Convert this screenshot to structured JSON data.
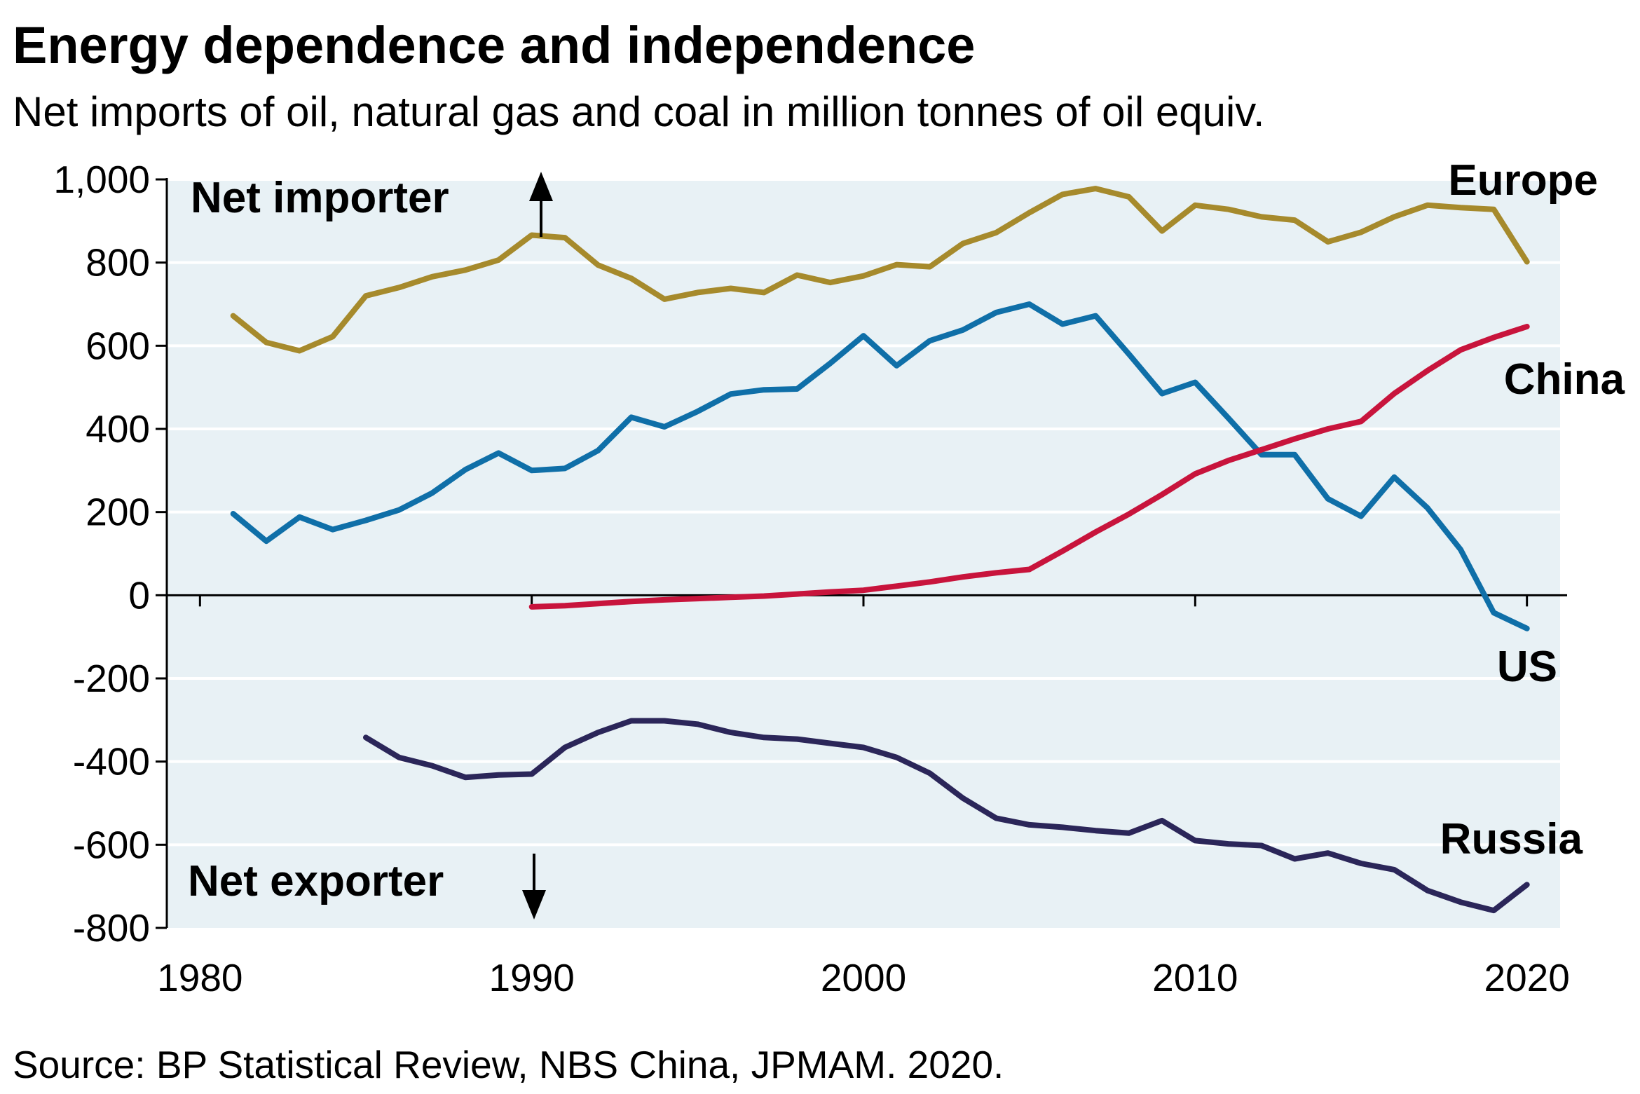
{
  "chart_data": {
    "type": "line",
    "title": "Energy dependence and independence",
    "subtitle": "Net imports of oil, natural gas and coal in million tonnes of oil equiv.",
    "source": "Source: BP Statistical Review, NBS China, JPMAM. 2020.",
    "xlabel": "",
    "ylabel": "",
    "xlim": [
      1979.0,
      2021.0
    ],
    "ylim": [
      -800,
      1000
    ],
    "x_ticks": [
      1980,
      1990,
      2000,
      2010,
      2020
    ],
    "x_tick_labels": [
      "1980",
      "1990",
      "2000",
      "2010",
      "2020"
    ],
    "y_ticks": [
      1000,
      800,
      600,
      400,
      200,
      0,
      -200,
      -400,
      -600,
      -800
    ],
    "y_tick_labels": [
      "1,000",
      "800",
      "600",
      "400",
      "200",
      "0",
      "-200",
      "-400",
      "-600",
      "-800"
    ],
    "grid": true,
    "legend": "direct labels at line ends",
    "annotations": {
      "net_importer": "Net importer",
      "net_exporter": "Net exporter"
    },
    "series": [
      {
        "name": "Europe",
        "color": "#A68A2C",
        "x": [
          1981,
          1982,
          1983,
          1984,
          1985,
          1986,
          1987,
          1988,
          1989,
          1990,
          1991,
          1992,
          1993,
          1994,
          1995,
          1996,
          1997,
          1998,
          1999,
          2000,
          2001,
          2002,
          2003,
          2004,
          2005,
          2006,
          2007,
          2008,
          2009,
          2010,
          2011,
          2012,
          2013,
          2014,
          2015,
          2016,
          2017,
          2018,
          2019,
          2020
        ],
        "values": [
          672,
          608,
          588,
          622,
          720,
          740,
          766,
          782,
          806,
          866,
          860,
          794,
          762,
          712,
          728,
          738,
          728,
          770,
          752,
          768,
          795,
          790,
          846,
          872,
          920,
          964,
          978,
          958,
          876,
          938,
          928,
          910,
          902,
          850,
          873,
          910,
          938,
          932,
          928,
          802
        ]
      },
      {
        "name": "US",
        "color": "#0F6FA8",
        "x": [
          1981,
          1982,
          1983,
          1984,
          1985,
          1986,
          1987,
          1988,
          1989,
          1990,
          1991,
          1992,
          1993,
          1994,
          1995,
          1996,
          1997,
          1998,
          1999,
          2000,
          2001,
          2002,
          2003,
          2004,
          2005,
          2006,
          2007,
          2008,
          2009,
          2010,
          2011,
          2012,
          2013,
          2014,
          2015,
          2016,
          2017,
          2018,
          2019,
          2020
        ],
        "values": [
          196,
          130,
          188,
          158,
          180,
          205,
          246,
          302,
          342,
          300,
          305,
          348,
          428,
          405,
          442,
          484,
          494,
          496,
          558,
          624,
          552,
          612,
          638,
          680,
          700,
          652,
          672,
          580,
          485,
          512,
          426,
          338,
          338,
          232,
          190,
          284,
          210,
          110,
          -42,
          -80
        ]
      },
      {
        "name": "China",
        "color": "#C8143C",
        "x": [
          1990,
          1991,
          1992,
          1993,
          1994,
          1995,
          1996,
          1997,
          1998,
          1999,
          2000,
          2001,
          2002,
          2003,
          2004,
          2005,
          2006,
          2007,
          2008,
          2009,
          2010,
          2011,
          2012,
          2013,
          2014,
          2015,
          2016,
          2017,
          2018,
          2019,
          2020
        ],
        "values": [
          -28,
          -25,
          -20,
          -15,
          -11,
          -8,
          -5,
          -2,
          3,
          8,
          12,
          22,
          32,
          44,
          54,
          62,
          106,
          152,
          195,
          242,
          292,
          324,
          350,
          376,
          400,
          418,
          485,
          540,
          590,
          620,
          646
        ]
      },
      {
        "name": "Russia",
        "color": "#2B2659",
        "x": [
          1985,
          1986,
          1987,
          1988,
          1989,
          1990,
          1991,
          1992,
          1993,
          1994,
          1995,
          1996,
          1997,
          1998,
          1999,
          2000,
          2001,
          2002,
          2003,
          2004,
          2005,
          2006,
          2007,
          2008,
          2009,
          2010,
          2011,
          2012,
          2013,
          2014,
          2015,
          2016,
          2017,
          2018,
          2019,
          2020
        ],
        "values": [
          -342,
          -390,
          -410,
          -438,
          -432,
          -430,
          -366,
          -330,
          -302,
          -302,
          -310,
          -330,
          -342,
          -346,
          -356,
          -366,
          -390,
          -428,
          -488,
          -536,
          -552,
          -558,
          -566,
          -572,
          -542,
          -590,
          -598,
          -602,
          -634,
          -620,
          -645,
          -660,
          -710,
          -738,
          -758,
          -696
        ]
      }
    ]
  }
}
